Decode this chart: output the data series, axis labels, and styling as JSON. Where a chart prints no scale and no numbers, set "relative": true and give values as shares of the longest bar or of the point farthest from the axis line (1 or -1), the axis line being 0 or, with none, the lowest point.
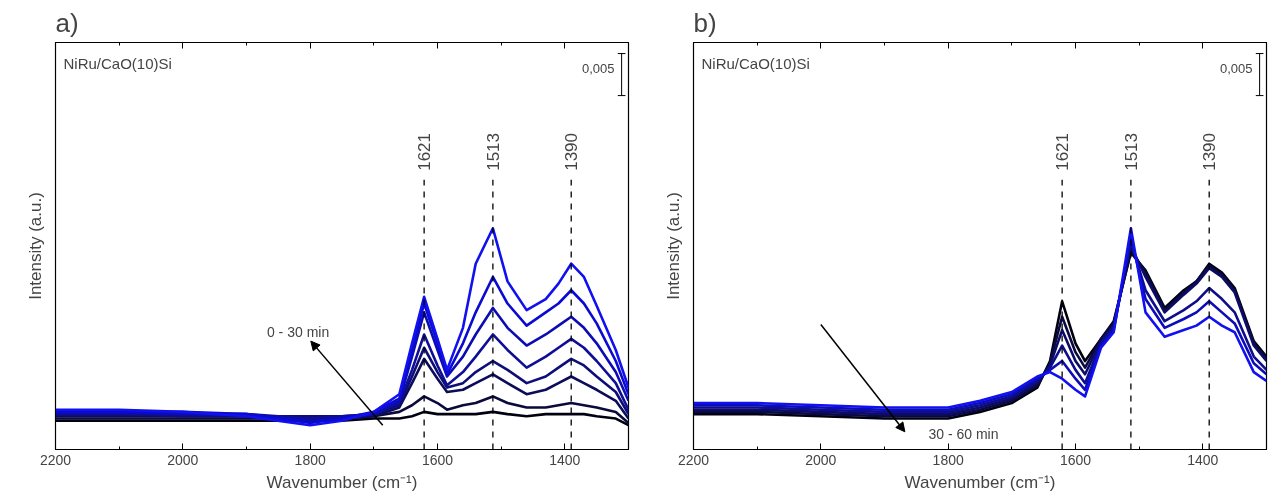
{
  "chart_data": [
    {
      "type": "line",
      "title": "a)",
      "xlabel": "Wavenumber (cm⁻¹)",
      "ylabel": "Intensity (a.u.)",
      "relative": true,
      "xlim": [
        2200,
        1300
      ],
      "xticks": [
        2200,
        2000,
        1800,
        1600,
        1400
      ],
      "grid": false,
      "marker": "none",
      "line_style": "solid",
      "x": [
        2200,
        2100,
        2000,
        1900,
        1800,
        1750,
        1700,
        1660,
        1640,
        1621,
        1600,
        1585,
        1560,
        1540,
        1513,
        1490,
        1460,
        1430,
        1410,
        1390,
        1370,
        1350,
        1320,
        1300
      ],
      "series": [
        {
          "color": "#000010",
          "values": [
            0.13,
            0.13,
            0.13,
            0.13,
            0.13,
            0.13,
            0.14,
            0.14,
            0.15,
            0.17,
            0.16,
            0.16,
            0.16,
            0.16,
            0.17,
            0.16,
            0.15,
            0.16,
            0.16,
            0.16,
            0.16,
            0.15,
            0.14,
            0.11
          ]
        },
        {
          "color": "#0a0a3c",
          "values": [
            0.14,
            0.14,
            0.14,
            0.14,
            0.14,
            0.14,
            0.15,
            0.17,
            0.2,
            0.24,
            0.21,
            0.18,
            0.2,
            0.21,
            0.24,
            0.21,
            0.19,
            0.19,
            0.2,
            0.21,
            0.2,
            0.19,
            0.17,
            0.12
          ]
        },
        {
          "color": "#0c0c5a",
          "values": [
            0.15,
            0.15,
            0.15,
            0.15,
            0.14,
            0.14,
            0.15,
            0.19,
            0.3,
            0.41,
            0.32,
            0.26,
            0.27,
            0.3,
            0.34,
            0.3,
            0.25,
            0.27,
            0.3,
            0.33,
            0.3,
            0.27,
            0.22,
            0.14
          ]
        },
        {
          "color": "#0e0e78",
          "values": [
            0.16,
            0.16,
            0.15,
            0.15,
            0.15,
            0.15,
            0.16,
            0.2,
            0.33,
            0.46,
            0.35,
            0.28,
            0.3,
            0.35,
            0.4,
            0.36,
            0.3,
            0.33,
            0.37,
            0.41,
            0.38,
            0.33,
            0.26,
            0.16
          ]
        },
        {
          "color": "#0e0e96",
          "values": [
            0.16,
            0.16,
            0.16,
            0.16,
            0.14,
            0.15,
            0.16,
            0.21,
            0.36,
            0.52,
            0.38,
            0.29,
            0.35,
            0.42,
            0.52,
            0.45,
            0.37,
            0.42,
            0.46,
            0.5,
            0.46,
            0.4,
            0.3,
            0.18
          ]
        },
        {
          "color": "#0c0cb4",
          "values": [
            0.17,
            0.17,
            0.16,
            0.16,
            0.13,
            0.14,
            0.16,
            0.22,
            0.42,
            0.62,
            0.45,
            0.33,
            0.42,
            0.52,
            0.64,
            0.55,
            0.47,
            0.52,
            0.56,
            0.6,
            0.55,
            0.48,
            0.35,
            0.22
          ]
        },
        {
          "color": "#0a0ad2",
          "values": [
            0.17,
            0.17,
            0.17,
            0.16,
            0.12,
            0.14,
            0.17,
            0.23,
            0.45,
            0.66,
            0.48,
            0.34,
            0.48,
            0.62,
            0.78,
            0.66,
            0.56,
            0.62,
            0.66,
            0.72,
            0.66,
            0.57,
            0.4,
            0.25
          ]
        },
        {
          "color": "#1010f0",
          "values": [
            0.18,
            0.18,
            0.17,
            0.15,
            0.11,
            0.13,
            0.17,
            0.25,
            0.48,
            0.69,
            0.5,
            0.36,
            0.55,
            0.84,
            1.0,
            0.76,
            0.63,
            0.68,
            0.75,
            0.84,
            0.78,
            0.65,
            0.45,
            0.28
          ]
        }
      ],
      "ref_lines": [
        {
          "axis": "x",
          "value": 1621,
          "label": "1621",
          "color": "#000000",
          "line_style": "dashed"
        },
        {
          "axis": "x",
          "value": 1513,
          "label": "1513",
          "color": "#000000",
          "line_style": "dashed"
        },
        {
          "axis": "x",
          "value": 1390,
          "label": "1390",
          "color": "#000000",
          "line_style": "dashed"
        }
      ],
      "annotations": [
        "NiRu/CaO(10)Si",
        "0,005",
        "0 - 30 min"
      ]
    },
    {
      "type": "line",
      "title": "b)",
      "xlabel": "Wavenumber (cm⁻¹)",
      "ylabel": "Intensity (a.u.)",
      "relative": true,
      "xlim": [
        2200,
        1300
      ],
      "xticks": [
        2200,
        2000,
        1800,
        1600,
        1400
      ],
      "grid": false,
      "marker": "none",
      "line_style": "solid",
      "x": [
        2200,
        2100,
        2000,
        1900,
        1800,
        1750,
        1700,
        1660,
        1640,
        1621,
        1600,
        1585,
        1560,
        1540,
        1513,
        1490,
        1460,
        1430,
        1410,
        1390,
        1370,
        1350,
        1320,
        1300
      ],
      "series": [
        {
          "color": "#000010",
          "values": [
            0.16,
            0.16,
            0.15,
            0.14,
            0.14,
            0.17,
            0.21,
            0.28,
            0.4,
            0.67,
            0.48,
            0.4,
            0.5,
            0.58,
            0.89,
            0.81,
            0.64,
            0.72,
            0.76,
            0.84,
            0.8,
            0.73,
            0.49,
            0.42
          ]
        },
        {
          "color": "#0a0a40",
          "values": [
            0.17,
            0.17,
            0.16,
            0.15,
            0.15,
            0.18,
            0.22,
            0.29,
            0.39,
            0.6,
            0.44,
            0.37,
            0.5,
            0.57,
            0.9,
            0.8,
            0.63,
            0.71,
            0.76,
            0.83,
            0.79,
            0.72,
            0.48,
            0.41
          ]
        },
        {
          "color": "#0c0c66",
          "values": [
            0.18,
            0.18,
            0.17,
            0.16,
            0.16,
            0.19,
            0.23,
            0.3,
            0.38,
            0.54,
            0.4,
            0.34,
            0.49,
            0.56,
            0.92,
            0.78,
            0.62,
            0.7,
            0.75,
            0.82,
            0.78,
            0.71,
            0.47,
            0.4
          ]
        },
        {
          "color": "#0e0e8c",
          "values": [
            0.19,
            0.19,
            0.18,
            0.17,
            0.17,
            0.2,
            0.24,
            0.31,
            0.37,
            0.47,
            0.36,
            0.3,
            0.48,
            0.55,
            0.94,
            0.72,
            0.58,
            0.63,
            0.67,
            0.73,
            0.68,
            0.62,
            0.42,
            0.36
          ]
        },
        {
          "color": "#0c0cb8",
          "values": [
            0.2,
            0.2,
            0.19,
            0.18,
            0.18,
            0.21,
            0.25,
            0.32,
            0.36,
            0.4,
            0.32,
            0.27,
            0.47,
            0.54,
            0.96,
            0.68,
            0.55,
            0.59,
            0.62,
            0.67,
            0.62,
            0.57,
            0.39,
            0.34
          ]
        },
        {
          "color": "#1010f0",
          "values": [
            0.21,
            0.21,
            0.2,
            0.19,
            0.19,
            0.22,
            0.26,
            0.33,
            0.35,
            0.32,
            0.27,
            0.24,
            0.46,
            0.53,
            1.0,
            0.62,
            0.51,
            0.54,
            0.56,
            0.6,
            0.56,
            0.53,
            0.35,
            0.31
          ]
        }
      ],
      "ref_lines": [
        {
          "axis": "x",
          "value": 1621,
          "label": "1621",
          "color": "#000000",
          "line_style": "dashed"
        },
        {
          "axis": "x",
          "value": 1513,
          "label": "1513",
          "color": "#000000",
          "line_style": "dashed"
        },
        {
          "axis": "x",
          "value": 1390,
          "label": "1390",
          "color": "#000000",
          "line_style": "dashed"
        }
      ],
      "annotations": [
        "NiRu/CaO(10)Si",
        "0,005",
        "30 - 60 min"
      ]
    }
  ]
}
